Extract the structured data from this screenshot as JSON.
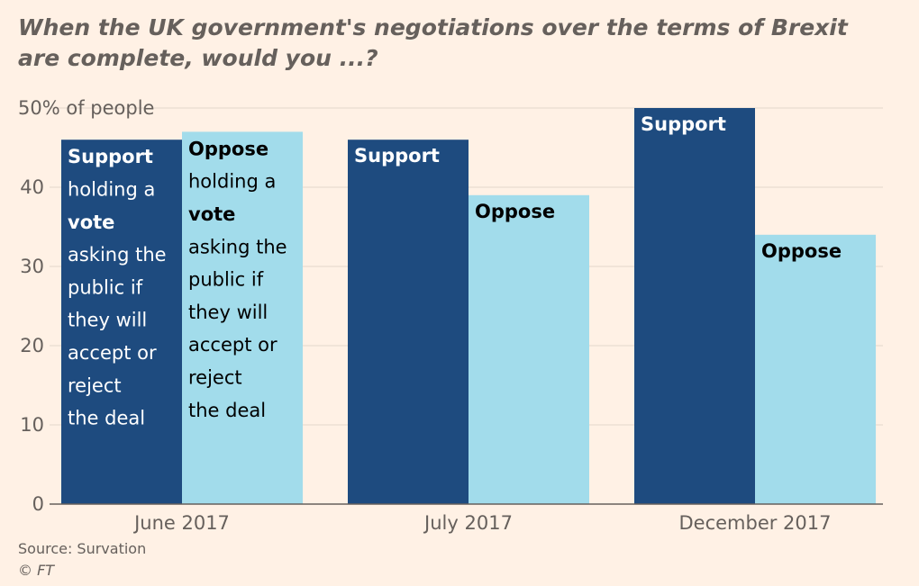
{
  "title_lines": [
    "When the UK government's negotiations over the terms of Brexit",
    "are complete, would you ...?"
  ],
  "source": "Source: Survation",
  "copyright": "© FT",
  "colors": {
    "background": "#FFF1E5",
    "support": "#1E4B7F",
    "oppose": "#A2DCEB",
    "grid": "#E3D6CB",
    "axis": "#66605C",
    "text": "#66605C"
  },
  "chart_data": {
    "type": "bar",
    "categories": [
      "June 2017",
      "July 2017",
      "December 2017"
    ],
    "series": [
      {
        "name": "Support",
        "values": [
          46,
          46,
          50
        ]
      },
      {
        "name": "Oppose",
        "values": [
          47,
          39,
          34
        ]
      }
    ],
    "ylabel": "50% of people",
    "ylim": [
      0,
      50
    ],
    "yticks": [
      "0",
      "10",
      "20",
      "30",
      "40"
    ],
    "grid": true,
    "annotations": [
      [
        [
          "Support",
          true
        ],
        [
          "holding a",
          false
        ],
        [
          "vote",
          true
        ],
        [
          "asking the",
          false
        ],
        [
          "public if",
          false
        ],
        [
          "they will",
          false
        ],
        [
          "accept or",
          false
        ],
        [
          "reject",
          false
        ],
        [
          "the deal",
          false
        ]
      ],
      [
        [
          "Oppose",
          true
        ],
        [
          "holding a",
          false
        ],
        [
          "vote",
          true
        ],
        [
          "asking the",
          false
        ],
        [
          "public if",
          false
        ],
        [
          "they will",
          false
        ],
        [
          "accept or",
          false
        ],
        [
          "reject",
          false
        ],
        [
          "the deal",
          false
        ]
      ]
    ],
    "bar_labels": [
      [
        "Support",
        "Oppose"
      ],
      [
        "Support",
        "Oppose"
      ],
      [
        "Support",
        "Oppose"
      ]
    ]
  }
}
